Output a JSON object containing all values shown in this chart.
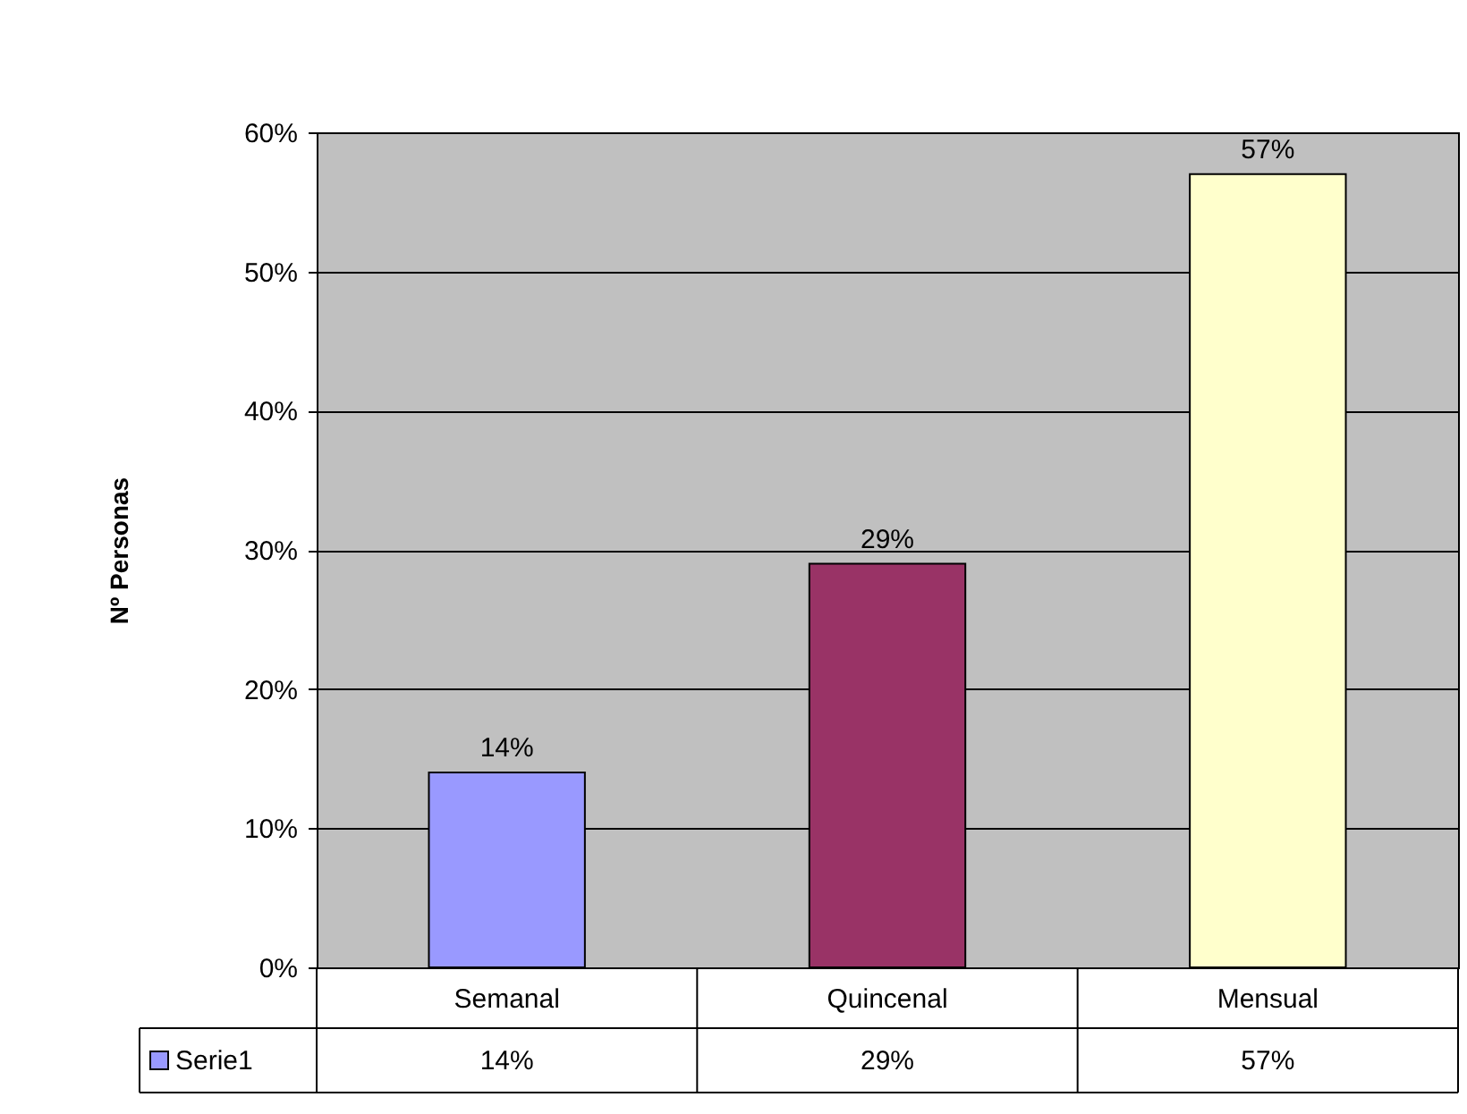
{
  "chart_data": {
    "type": "bar",
    "ylabel": "Nº Personas",
    "categories": [
      "Semanal",
      "Quincenal",
      "Mensual"
    ],
    "series": [
      {
        "name": "Serie1",
        "color": "#9999ff",
        "colors": [
          "#9999ff",
          "#993366",
          "#ffffcc"
        ],
        "values": [
          14,
          29,
          57
        ],
        "value_labels": [
          "14%",
          "29%",
          "57%"
        ]
      }
    ],
    "ylim": [
      0,
      60
    ],
    "yticks": [
      {
        "value": 0,
        "label": "0%"
      },
      {
        "value": 10,
        "label": "10%"
      },
      {
        "value": 20,
        "label": "20%"
      },
      {
        "value": 30,
        "label": "30%"
      },
      {
        "value": 40,
        "label": "40%"
      },
      {
        "value": 50,
        "label": "50%"
      },
      {
        "value": 60,
        "label": "60%"
      }
    ],
    "grid": "y",
    "legend": "bottom left"
  }
}
